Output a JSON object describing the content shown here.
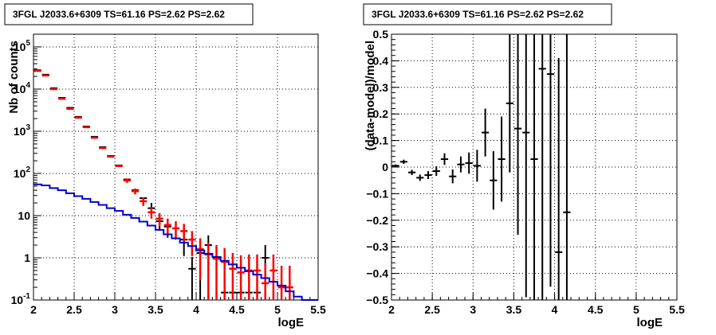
{
  "chart_data": [
    {
      "type": "scatter",
      "title": "3FGL J2033.6+6309 TS=61.16 PS=2.62 PS=2.62",
      "xlabel": "logE",
      "ylabel": "Nb of counts",
      "xlim": [
        2,
        5.5
      ],
      "ylim": [
        0.1,
        200000
      ],
      "yscale": "log",
      "grid": true,
      "x_ticks": [
        "2",
        "2.5",
        "3",
        "3.5",
        "4",
        "4.5",
        "5",
        "5.5"
      ],
      "y_ticks": [
        {
          "base": "10",
          "exp": "-1",
          "value": 0.1
        },
        {
          "base": "1",
          "exp": "",
          "value": 1
        },
        {
          "base": "10",
          "exp": "",
          "value": 10
        },
        {
          "base": "10",
          "exp": "2",
          "value": 100
        },
        {
          "base": "10",
          "exp": "3",
          "value": 1000
        },
        {
          "base": "10",
          "exp": "4",
          "value": 10000
        },
        {
          "base": "10",
          "exp": "5",
          "value": 100000
        }
      ],
      "series": [
        {
          "color": "#000000",
          "style": "points",
          "x": [
            2.05,
            2.15,
            2.25,
            2.35,
            2.45,
            2.55,
            2.65,
            2.75,
            2.85,
            2.95,
            3.05,
            3.15,
            3.25,
            3.35,
            3.45,
            3.55,
            3.65,
            3.75,
            3.85,
            3.95,
            4.05,
            4.15,
            4.25,
            4.35,
            4.45,
            4.55,
            4.65,
            4.75,
            4.85
          ],
          "y": [
            28000,
            22000,
            10500,
            6200,
            3600,
            2200,
            1300,
            740,
            420,
            260,
            155,
            72,
            40,
            26,
            15,
            7.4,
            5.5,
            5.0,
            2.7,
            0.55,
            1.3,
            2.0,
            1.0,
            0.15,
            0.15,
            0.15,
            0.15,
            0.15,
            1.0
          ],
          "err": [
            0,
            0,
            0,
            0,
            0,
            0,
            0,
            0,
            0,
            0,
            0,
            0,
            0,
            0,
            5,
            3,
            2.5,
            2.3,
            1.6,
            0.5,
            1.2,
            1.4,
            1.0,
            0,
            0,
            0,
            0,
            0,
            1.0
          ]
        },
        {
          "color": "#ff0000",
          "style": "points",
          "x": [
            2.05,
            2.15,
            2.25,
            2.35,
            2.45,
            2.55,
            2.65,
            2.75,
            2.85,
            2.95,
            3.05,
            3.15,
            3.25,
            3.35,
            3.45,
            3.55,
            3.65,
            3.75,
            3.85,
            3.95,
            4.05,
            4.15,
            4.25,
            4.35,
            4.45,
            4.55,
            4.65,
            4.75,
            4.85,
            4.95,
            5.05,
            5.15
          ],
          "y": [
            27000,
            21000,
            10000,
            5900,
            3400,
            2100,
            1250,
            700,
            400,
            250,
            150,
            68,
            38,
            22,
            12,
            8.5,
            6,
            5,
            4.3,
            2.7,
            1.6,
            1.2,
            0.95,
            0.8,
            0.55,
            0.45,
            0.5,
            0.5,
            0.25,
            0.5,
            0.2,
            0.2
          ],
          "err": [
            0,
            0,
            0,
            0,
            0,
            0,
            0,
            0,
            0,
            0,
            0,
            8,
            6,
            5,
            3.5,
            3,
            2.5,
            2.3,
            2.1,
            1.6,
            1.3,
            1.1,
            1.0,
            0.9,
            0.75,
            0.7,
            0.7,
            0.7,
            0.5,
            0.7,
            0.45,
            0.45
          ]
        },
        {
          "color": "#0000cc",
          "style": "histogram",
          "edges": [
            2.0,
            2.1,
            2.2,
            2.3,
            2.4,
            2.5,
            2.6,
            2.7,
            2.8,
            2.9,
            3.0,
            3.1,
            3.2,
            3.3,
            3.4,
            3.5,
            3.6,
            3.7,
            3.8,
            3.9,
            4.0,
            4.1,
            4.2,
            4.3,
            4.4,
            4.5,
            4.6,
            4.7,
            4.8,
            4.9,
            5.0,
            5.1,
            5.2,
            5.3,
            5.4,
            5.5
          ],
          "values": [
            55,
            52,
            45,
            40,
            34,
            29,
            25,
            21,
            18,
            15,
            13,
            10.5,
            8.8,
            7.2,
            5.8,
            4.6,
            3.6,
            2.9,
            2.3,
            1.9,
            1.5,
            1.25,
            1.05,
            0.85,
            0.7,
            0.58,
            0.48,
            0.4,
            0.33,
            0.27,
            0.22,
            0.16,
            0.12,
            0.1,
            0.1
          ]
        }
      ]
    },
    {
      "type": "scatter",
      "title": "3FGL J2033.6+6309 TS=61.16 PS=2.62 PS=2.62",
      "xlabel": "logE",
      "ylabel": "(data-model)/model",
      "xlim": [
        2,
        5.5
      ],
      "ylim": [
        -0.5,
        0.5
      ],
      "grid": true,
      "x_ticks": [
        "2",
        "2.5",
        "3",
        "3.5",
        "4",
        "4.5",
        "5",
        "5.5"
      ],
      "y_ticks": [
        "-0.5",
        "-0.4",
        "-0.3",
        "-0.2",
        "-0.1",
        "0",
        "0.1",
        "0.2",
        "0.3",
        "0.4",
        "0.5"
      ],
      "series": [
        {
          "color": "#000000",
          "style": "points",
          "x": [
            2.05,
            2.15,
            2.25,
            2.35,
            2.45,
            2.55,
            2.65,
            2.75,
            2.85,
            2.95,
            3.05,
            3.15,
            3.25,
            3.35,
            3.45,
            3.55,
            3.65,
            3.75,
            3.85,
            3.95,
            4.05,
            4.15
          ],
          "y": [
            0.005,
            0.02,
            -0.02,
            -0.04,
            -0.03,
            -0.015,
            0.03,
            -0.035,
            0.01,
            0.015,
            0.005,
            0.13,
            -0.05,
            0.03,
            0.24,
            0.145,
            0.13,
            0.03,
            0.37,
            0.35,
            -0.32,
            -0.17
          ],
          "err": [
            0.005,
            0.008,
            0.01,
            0.012,
            0.015,
            0.018,
            0.022,
            0.026,
            0.03,
            0.04,
            0.06,
            0.09,
            0.11,
            0.16,
            0.26,
            0.4,
            0.62,
            0.8,
            0.9,
            0.8,
            0.73,
            0.75
          ]
        }
      ]
    }
  ]
}
